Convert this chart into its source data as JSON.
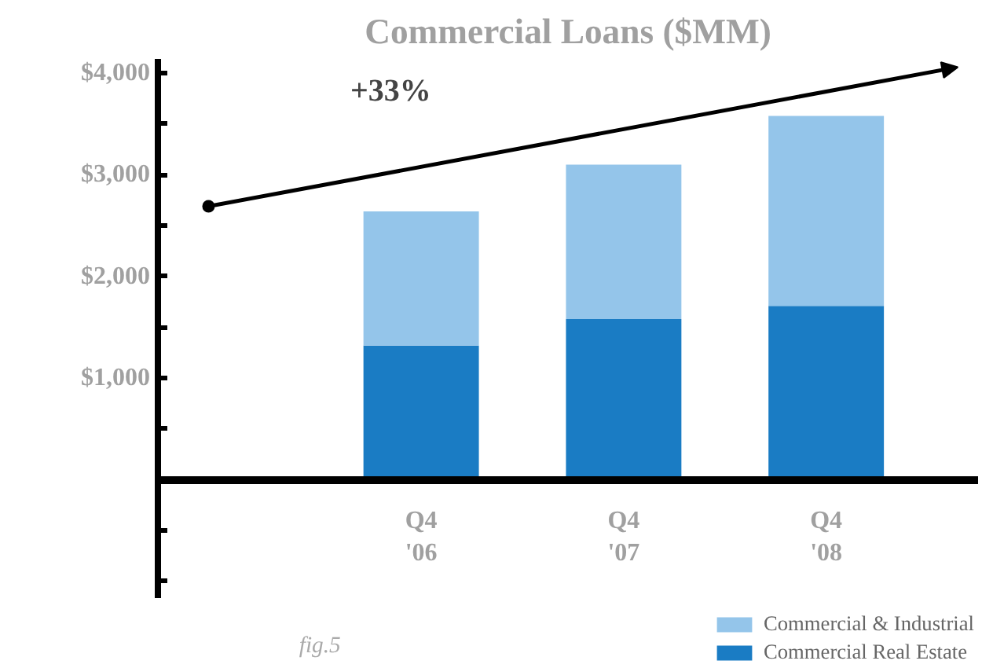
{
  "chart_data": {
    "type": "bar",
    "title": "Commercial Loans ($MM)",
    "categories": [
      "Q4\n'06",
      "Q4\n'07",
      "Q4\n'08"
    ],
    "stacked": true,
    "series": [
      {
        "name": "Commercial Real Estate",
        "color": "#1a7cc4",
        "values": [
          1320,
          1580,
          1710
        ]
      },
      {
        "name": "Commercial & Industrial",
        "color": "#94c5ea",
        "values": [
          1320,
          1520,
          1870
        ]
      }
    ],
    "ylim": [
      -1170,
      4140
    ],
    "yticks": [
      {
        "value": -1000,
        "label": null
      },
      {
        "value": -500,
        "label": null
      },
      {
        "value": 0,
        "label": null
      },
      {
        "value": 500,
        "label": null
      },
      {
        "value": 1000,
        "label": "$1,000"
      },
      {
        "value": 1500,
        "label": null
      },
      {
        "value": 2000,
        "label": "$2,000"
      },
      {
        "value": 2500,
        "label": null
      },
      {
        "value": 3000,
        "label": "$3,000"
      },
      {
        "value": 3500,
        "label": null
      },
      {
        "value": 4000,
        "label": "$4,000"
      }
    ],
    "legend": "bottom right",
    "grid": false,
    "annotations": [
      "+33%",
      "fig.5"
    ]
  }
}
